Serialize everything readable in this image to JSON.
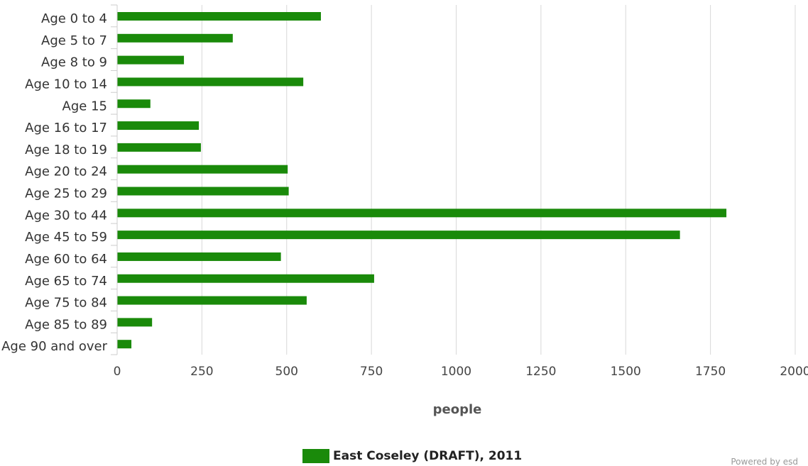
{
  "chart_data": {
    "type": "bar",
    "orientation": "horizontal",
    "categories": [
      "Age 0 to 4",
      "Age 5 to 7",
      "Age 8 to 9",
      "Age 10 to 14",
      "Age 15",
      "Age 16 to 17",
      "Age 18 to 19",
      "Age 20 to 24",
      "Age 25 to 29",
      "Age 30 to 44",
      "Age 45 to 59",
      "Age 60 to 64",
      "Age 65 to 74",
      "Age 75 to 84",
      "Age 85 to 89",
      "Age 90 and over"
    ],
    "series": [
      {
        "name": "East Coseley (DRAFT), 2011",
        "color": "#1a8a0a",
        "values": [
          601,
          341,
          197,
          549,
          98,
          241,
          247,
          503,
          506,
          1797,
          1660,
          483,
          758,
          559,
          103,
          42
        ]
      }
    ],
    "xlabel": "people",
    "ylabel": "",
    "xlim": [
      0,
      2000
    ],
    "xticks": [
      "0",
      "250",
      "500",
      "750",
      "1000",
      "1250",
      "1500",
      "1750",
      "2000"
    ],
    "grid": true,
    "legend_position": "bottom"
  },
  "footer": {
    "credit": "Powered by esd"
  }
}
